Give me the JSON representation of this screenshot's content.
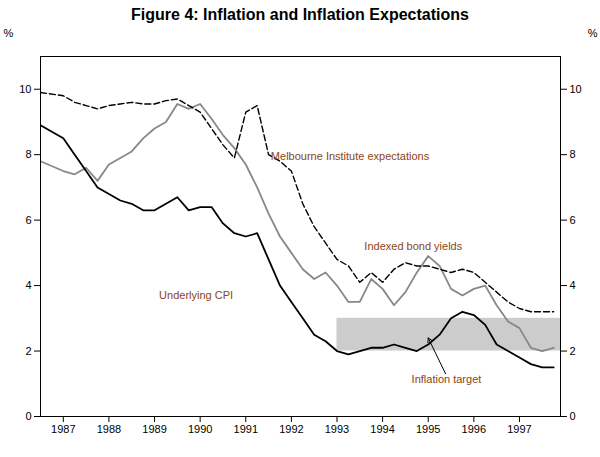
{
  "chart_data": {
    "type": "line",
    "title": "Figure 4: Inflation and Inflation Expectations",
    "ylabel": "%",
    "y2label": "%",
    "xlim": [
      1986.5,
      1997.9
    ],
    "xticks": [
      1987,
      1988,
      1989,
      1990,
      1991,
      1992,
      1993,
      1994,
      1995,
      1996,
      1997
    ],
    "ylim": [
      0,
      11
    ],
    "yticks": [
      0,
      2,
      4,
      6,
      8,
      10
    ],
    "y2lim": [
      0,
      11
    ],
    "y2ticks": [
      0,
      2,
      4,
      6,
      8,
      10
    ],
    "grid": false,
    "bands": [
      {
        "x": [
          1993.0,
          1997.9
        ],
        "y": [
          2,
          3
        ],
        "color": "#cccccc"
      }
    ],
    "x": [
      1986.5,
      1987.0,
      1987.25,
      1987.5,
      1987.75,
      1988.0,
      1988.25,
      1988.5,
      1988.75,
      1989.0,
      1989.25,
      1989.5,
      1989.75,
      1990.0,
      1990.25,
      1990.5,
      1990.75,
      1991.0,
      1991.25,
      1991.5,
      1991.75,
      1992.0,
      1992.25,
      1992.5,
      1992.75,
      1993.0,
      1993.25,
      1993.5,
      1993.75,
      1994.0,
      1994.25,
      1994.5,
      1994.75,
      1995.0,
      1995.25,
      1995.5,
      1995.75,
      1996.0,
      1996.25,
      1996.5,
      1996.75,
      1997.0,
      1997.25,
      1997.5,
      1997.75
    ],
    "series": [
      {
        "color": "#888888",
        "line_style": "solid",
        "values": [
          7.8,
          7.5,
          7.4,
          7.6,
          7.2,
          7.7,
          7.9,
          8.1,
          8.5,
          8.8,
          9.0,
          9.55,
          9.4,
          9.55,
          9.1,
          8.6,
          8.2,
          7.7,
          7.0,
          6.2,
          5.5,
          5.0,
          4.5,
          4.2,
          4.4,
          4.0,
          3.5,
          3.5,
          4.2,
          3.9,
          3.4,
          3.8,
          4.4,
          4.9,
          4.6,
          3.9,
          3.7,
          3.9,
          4.0,
          3.4,
          2.9,
          2.7,
          2.1,
          2.0,
          2.1
        ]
      },
      {
        "color": "#000000",
        "line_style": "dashed",
        "values": [
          9.9,
          9.8,
          9.6,
          9.5,
          9.4,
          9.5,
          9.55,
          9.6,
          9.55,
          9.55,
          9.65,
          9.7,
          9.5,
          9.3,
          8.8,
          8.3,
          7.9,
          9.3,
          9.5,
          8.0,
          7.8,
          7.5,
          6.5,
          5.8,
          5.3,
          4.8,
          4.6,
          4.1,
          4.4,
          4.1,
          4.5,
          4.7,
          4.6,
          4.6,
          4.5,
          4.4,
          4.5,
          4.4,
          4.1,
          3.8,
          3.5,
          3.3,
          3.2,
          3.2,
          3.2
        ]
      },
      {
        "color": "#000000",
        "line_style": "solid",
        "values": [
          8.9,
          8.5,
          8.0,
          7.5,
          7.0,
          6.8,
          6.6,
          6.5,
          6.3,
          6.3,
          6.5,
          6.7,
          6.3,
          6.4,
          6.4,
          5.9,
          5.6,
          5.5,
          5.6,
          4.8,
          4.0,
          3.5,
          3.0,
          2.5,
          2.3,
          2.0,
          1.9,
          2.0,
          2.1,
          2.1,
          2.2,
          2.1,
          2.0,
          2.2,
          2.5,
          3.0,
          3.2,
          3.1,
          2.8,
          2.2,
          2.0,
          1.8,
          1.6,
          1.5,
          1.5
        ]
      }
    ],
    "annotation_color": "#8B4513",
    "annotations": [
      {
        "text": "Melbourne Institute expectations",
        "x": 1991.55,
        "y": 7.85
      },
      {
        "text": "Indexed bond yields",
        "x": 1993.6,
        "y": 5.1
      },
      {
        "text": "Underlying CPI",
        "x": 1989.1,
        "y": 3.6
      },
      {
        "text": "Inflation target",
        "x": 1995.4,
        "y": 1.25,
        "arrow_x": 1995.0,
        "arrow_y": 2.4
      }
    ]
  }
}
